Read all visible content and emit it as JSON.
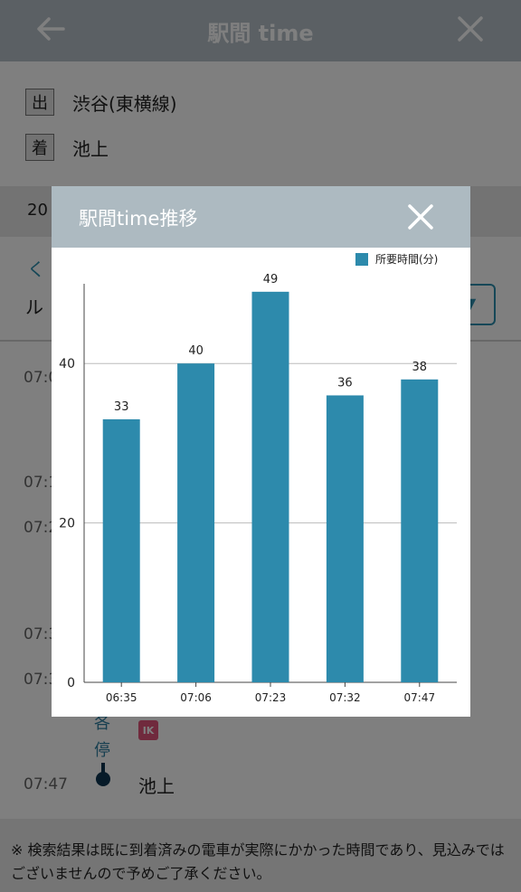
{
  "header": {
    "title": "駅間 time",
    "back_icon": "arrow-left-icon",
    "close_icon": "close-icon"
  },
  "stations": {
    "departure": {
      "badge": "出",
      "name": "渋谷(東横線)"
    },
    "arrival": {
      "badge": "着",
      "name": "池上"
    }
  },
  "datebar": {
    "date_partial": "20"
  },
  "nav": {
    "prev_partial": "く",
    "route_partial": "ル",
    "select_arrow_partial": "▼"
  },
  "timeline": {
    "times": [
      "07:0",
      "07:1",
      "07:2",
      "07:3",
      "07:3"
    ],
    "stop_chars": [
      "各",
      "停"
    ],
    "badge": "IK",
    "final_time": "07:47",
    "final_station": "池上"
  },
  "footer": {
    "note": "※ 検索結果は既に到着済みの電車が実際にかかった時間であり、見込みではございませんので予めご了承ください。"
  },
  "modal": {
    "title": "駅間time推移",
    "close_icon": "close-icon",
    "legend": "所要時間(分)"
  },
  "colors": {
    "bar": "#2d8aac",
    "accent": "#2d8fae",
    "modal_header": "#adbac1"
  },
  "chart_data": {
    "type": "bar",
    "title": "",
    "categories": [
      "06:35",
      "07:06",
      "07:23",
      "07:32",
      "07:47"
    ],
    "series": [
      {
        "name": "所要時間(分)",
        "values": [
          33,
          40,
          49,
          36,
          38
        ]
      }
    ],
    "ylim": [
      0,
      50
    ],
    "yticks": [
      0,
      20,
      40
    ],
    "grid": true,
    "legend": "top-right",
    "data_labels": true
  }
}
